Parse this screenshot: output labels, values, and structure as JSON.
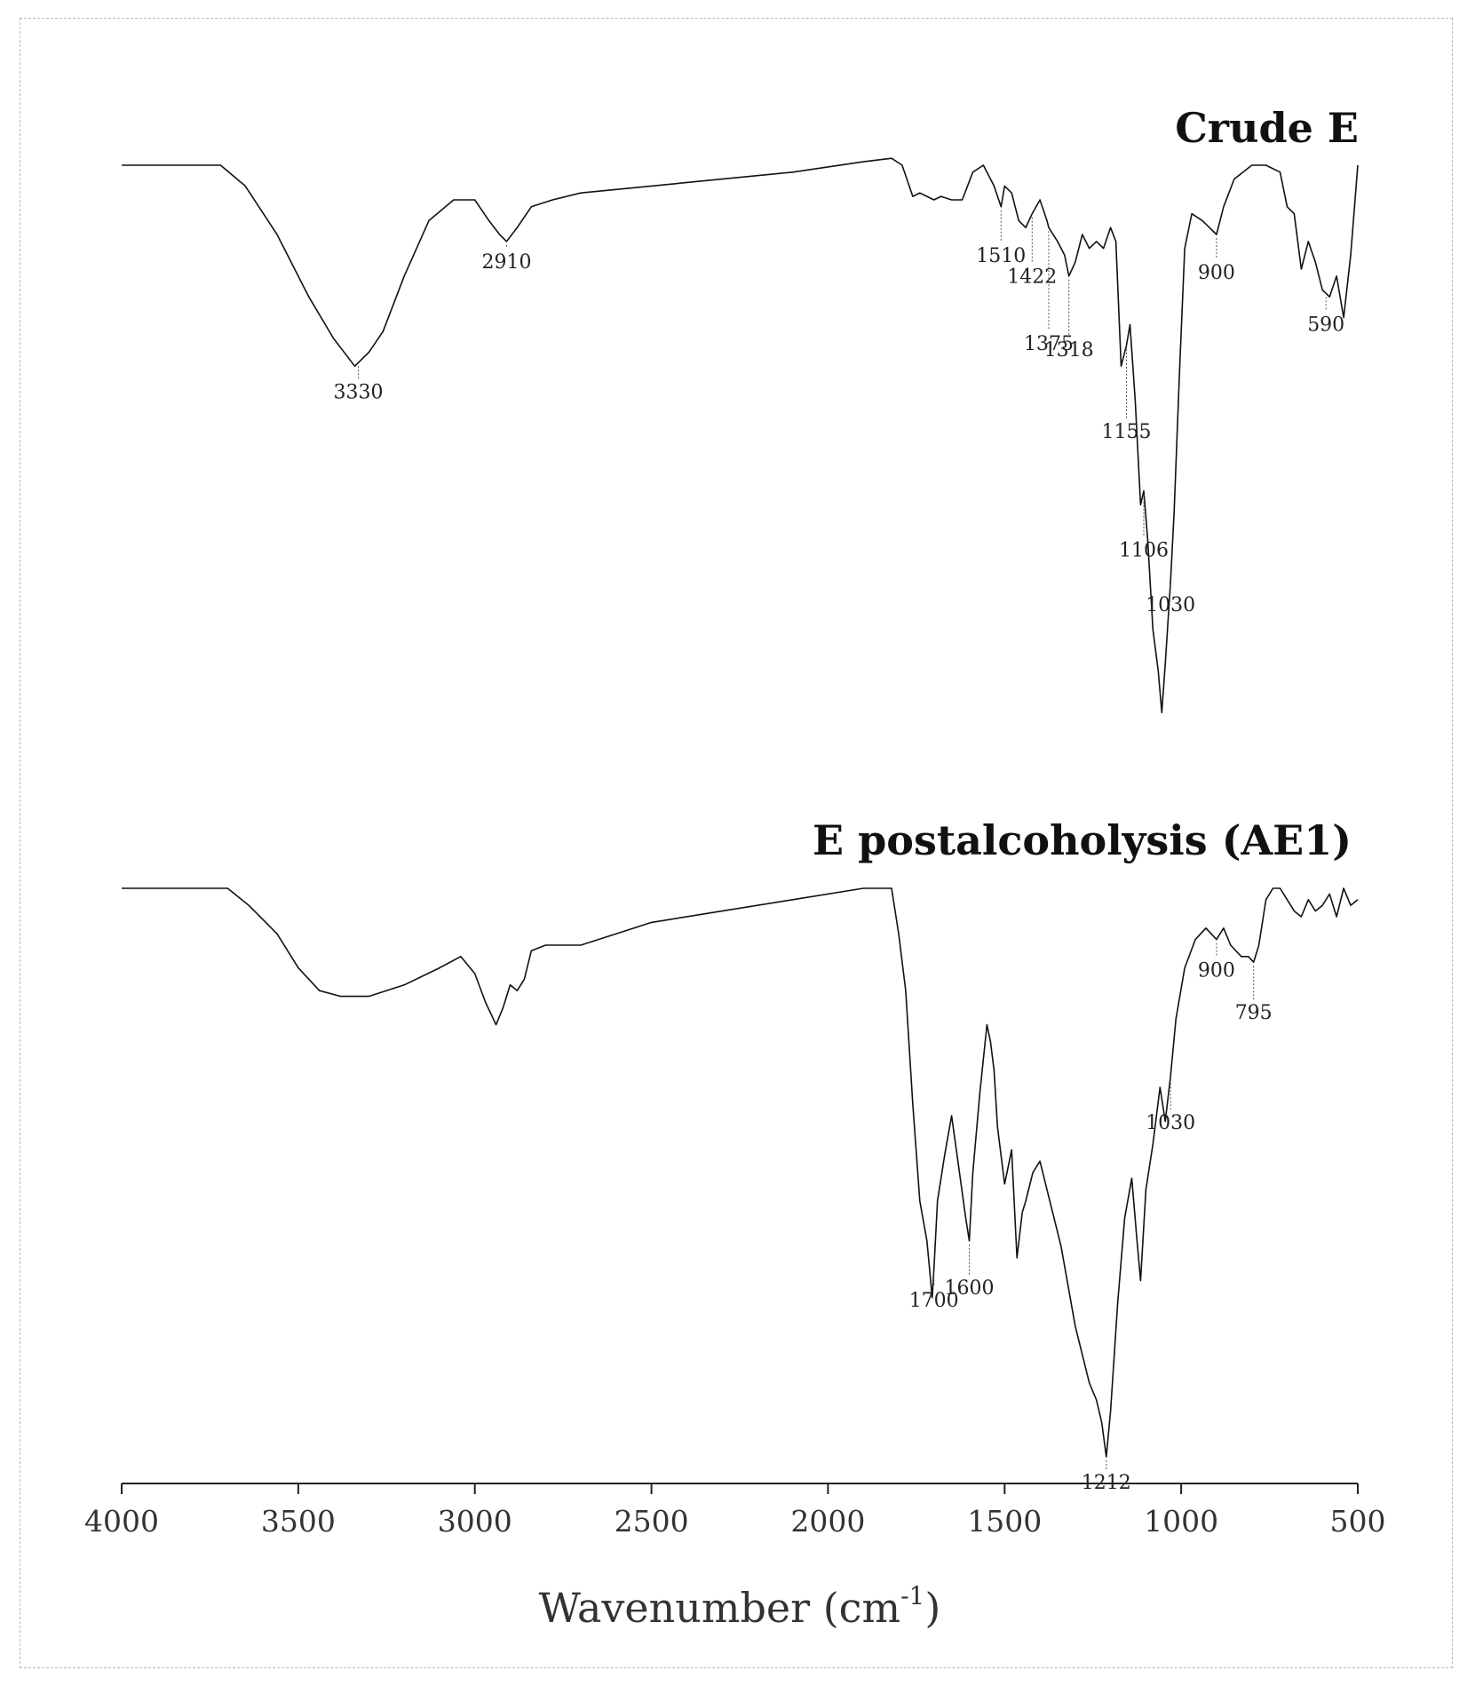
{
  "chart_data": {
    "type": "line",
    "title": "",
    "xlabel": "Wavenumber (cm",
    "xlabel_sup": "-1",
    "xlabel_close": ")",
    "ylabel": "",
    "xlim": [
      4000,
      500
    ],
    "x_reversed": true,
    "grid": false,
    "ticks": [
      4000,
      3500,
      3000,
      2500,
      2000,
      1500,
      1000,
      500
    ],
    "tick_labels": [
      "4000",
      "3500",
      "3000",
      "2500",
      "2000",
      "1500",
      "1000",
      "500"
    ],
    "series": [
      {
        "name": "Crude E",
        "x": [
          4000,
          3900,
          3800,
          3720,
          3650,
          3560,
          3470,
          3400,
          3340,
          3300,
          3260,
          3200,
          3130,
          3060,
          3000,
          2960,
          2930,
          2910,
          2880,
          2840,
          2780,
          2700,
          2500,
          2300,
          2100,
          1900,
          1820,
          1790,
          1760,
          1740,
          1720,
          1700,
          1680,
          1650,
          1620,
          1590,
          1560,
          1530,
          1510,
          1500,
          1480,
          1460,
          1440,
          1422,
          1400,
          1380,
          1375,
          1350,
          1330,
          1318,
          1300,
          1280,
          1260,
          1240,
          1220,
          1200,
          1185,
          1170,
          1155,
          1145,
          1130,
          1115,
          1106,
          1095,
          1080,
          1065,
          1055,
          1045,
          1040,
          1030,
          1020,
          1005,
          990,
          970,
          940,
          900,
          880,
          850,
          800,
          760,
          720,
          700,
          680,
          660,
          640,
          620,
          600,
          580,
          560,
          540,
          520,
          500
        ],
        "y": [
          0.0,
          0.0,
          0.0,
          0.0,
          0.03,
          0.1,
          0.19,
          0.25,
          0.29,
          0.27,
          0.24,
          0.16,
          0.08,
          0.05,
          0.05,
          0.08,
          0.1,
          0.11,
          0.09,
          0.06,
          0.05,
          0.04,
          0.03,
          0.02,
          0.01,
          -0.005,
          -0.01,
          0.0,
          0.045,
          0.04,
          0.045,
          0.05,
          0.045,
          0.05,
          0.05,
          0.01,
          0.0,
          0.03,
          0.06,
          0.03,
          0.04,
          0.08,
          0.09,
          0.07,
          0.05,
          0.08,
          0.09,
          0.11,
          0.13,
          0.16,
          0.14,
          0.1,
          0.12,
          0.11,
          0.12,
          0.09,
          0.11,
          0.29,
          0.26,
          0.23,
          0.34,
          0.49,
          0.47,
          0.54,
          0.67,
          0.73,
          0.79,
          0.72,
          0.68,
          0.6,
          0.5,
          0.3,
          0.12,
          0.07,
          0.08,
          0.1,
          0.06,
          0.02,
          0.0,
          0.0,
          0.01,
          0.06,
          0.07,
          0.15,
          0.11,
          0.14,
          0.18,
          0.19,
          0.16,
          0.22,
          0.13,
          0.0
        ]
      },
      {
        "name": "E postalcoholysis (AE1)",
        "x": [
          4000,
          3900,
          3800,
          3700,
          3640,
          3560,
          3500,
          3440,
          3380,
          3300,
          3200,
          3100,
          3040,
          3000,
          2970,
          2940,
          2920,
          2900,
          2880,
          2860,
          2840,
          2800,
          2700,
          2600,
          2500,
          2300,
          2100,
          1900,
          1820,
          1800,
          1780,
          1760,
          1740,
          1720,
          1705,
          1700,
          1690,
          1670,
          1650,
          1630,
          1610,
          1600,
          1590,
          1570,
          1550,
          1540,
          1530,
          1520,
          1500,
          1490,
          1480,
          1465,
          1450,
          1440,
          1420,
          1400,
          1380,
          1340,
          1300,
          1260,
          1240,
          1225,
          1212,
          1200,
          1180,
          1160,
          1140,
          1125,
          1115,
          1100,
          1080,
          1060,
          1045,
          1030,
          1015,
          990,
          960,
          930,
          900,
          880,
          860,
          830,
          810,
          795,
          780,
          760,
          740,
          720,
          700,
          680,
          660,
          640,
          620,
          600,
          580,
          560,
          540,
          520,
          500
        ],
        "y": [
          0.0,
          0.0,
          0.0,
          0.0,
          0.03,
          0.08,
          0.14,
          0.18,
          0.19,
          0.19,
          0.17,
          0.14,
          0.12,
          0.15,
          0.2,
          0.24,
          0.21,
          0.17,
          0.18,
          0.16,
          0.11,
          0.1,
          0.1,
          0.08,
          0.06,
          0.04,
          0.02,
          0.0,
          0.0,
          0.08,
          0.18,
          0.38,
          0.55,
          0.62,
          0.72,
          0.67,
          0.55,
          0.47,
          0.4,
          0.49,
          0.58,
          0.62,
          0.5,
          0.36,
          0.24,
          0.27,
          0.32,
          0.42,
          0.52,
          0.49,
          0.46,
          0.65,
          0.57,
          0.55,
          0.5,
          0.48,
          0.53,
          0.63,
          0.77,
          0.87,
          0.9,
          0.94,
          1.0,
          0.92,
          0.73,
          0.58,
          0.51,
          0.62,
          0.69,
          0.53,
          0.45,
          0.35,
          0.41,
          0.33,
          0.23,
          0.14,
          0.09,
          0.07,
          0.09,
          0.07,
          0.1,
          0.12,
          0.12,
          0.13,
          0.1,
          0.02,
          0.0,
          0.0,
          0.02,
          0.04,
          0.05,
          0.02,
          0.04,
          0.03,
          0.01,
          0.05,
          0.0,
          0.03,
          0.02
        ]
      }
    ],
    "peak_annotations": [
      {
        "series": 0,
        "x": 3330,
        "label": "3330"
      },
      {
        "series": 0,
        "x": 2910,
        "label": "2910"
      },
      {
        "series": 0,
        "x": 1510,
        "label": "1510"
      },
      {
        "series": 0,
        "x": 1422,
        "label": "1422"
      },
      {
        "series": 0,
        "x": 1375,
        "label": "1375"
      },
      {
        "series": 0,
        "x": 1318,
        "label": "1318"
      },
      {
        "series": 0,
        "x": 1155,
        "label": "1155"
      },
      {
        "series": 0,
        "x": 1106,
        "label": "1106"
      },
      {
        "series": 0,
        "x": 1030,
        "label": "1030"
      },
      {
        "series": 0,
        "x": 900,
        "label": "900"
      },
      {
        "series": 0,
        "x": 590,
        "label": "590"
      },
      {
        "series": 1,
        "x": 1700,
        "label": "1700"
      },
      {
        "series": 1,
        "x": 1600,
        "label": "1600"
      },
      {
        "series": 1,
        "x": 1212,
        "label": "1212"
      },
      {
        "series": 1,
        "x": 1030,
        "label": "1030"
      },
      {
        "series": 1,
        "x": 900,
        "label": "900"
      },
      {
        "series": 1,
        "x": 795,
        "label": "795"
      }
    ]
  }
}
